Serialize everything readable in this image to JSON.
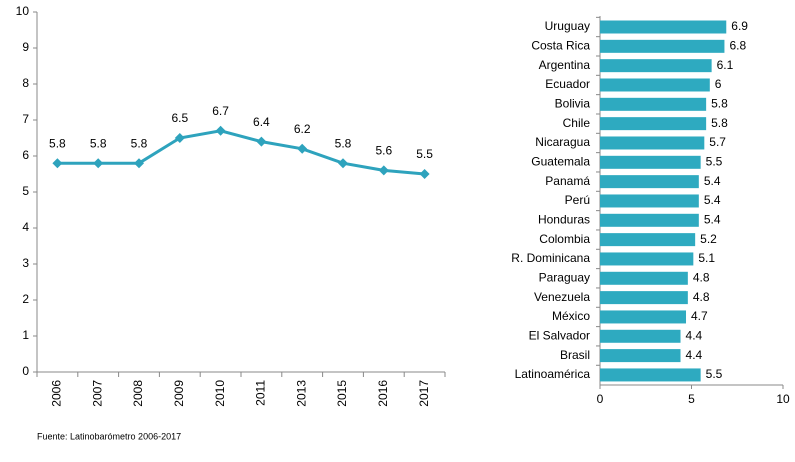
{
  "chart_data": [
    {
      "type": "line",
      "categories": [
        "2006",
        "2007",
        "2008",
        "2009",
        "2010",
        "2011",
        "2013",
        "2015",
        "2016",
        "2017"
      ],
      "values": [
        5.8,
        5.8,
        5.8,
        6.5,
        6.7,
        6.4,
        6.2,
        5.8,
        5.6,
        5.5
      ],
      "color": "#2ea3bd",
      "ylim": [
        0,
        10
      ],
      "yticks": [
        0,
        1,
        2,
        3,
        4,
        5,
        6,
        7,
        8,
        9,
        10
      ]
    },
    {
      "type": "hbar",
      "categories": [
        "Uruguay",
        "Costa Rica",
        "Argentina",
        "Ecuador",
        "Bolivia",
        "Chile",
        "Nicaragua",
        "Guatemala",
        "Panamá",
        "Perú",
        "Honduras",
        "Colombia",
        "R. Dominicana",
        "Paraguay",
        "Venezuela",
        "México",
        "El Salvador",
        "Brasil",
        "Latinoamérica"
      ],
      "values": [
        6.9,
        6.8,
        6.1,
        6,
        5.8,
        5.8,
        5.7,
        5.5,
        5.4,
        5.4,
        5.4,
        5.2,
        5.1,
        4.8,
        4.8,
        4.7,
        4.4,
        4.4,
        5.5
      ],
      "color": "#2eaac0",
      "xlim": [
        0,
        10
      ],
      "xticks": [
        0,
        5,
        10
      ]
    }
  ],
  "source": "Fuente: Latinobarómetro 2006-2017"
}
